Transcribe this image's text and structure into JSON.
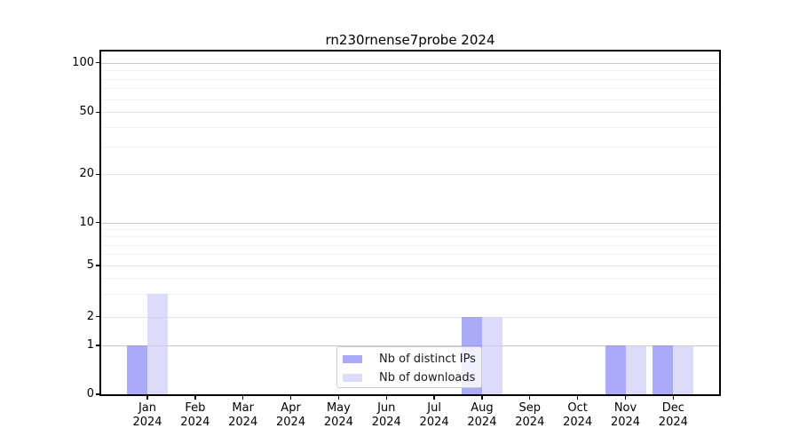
{
  "chart_data": {
    "type": "bar",
    "title": "rn230rnense7probe 2024",
    "x_categories": [
      "Jan",
      "Feb",
      "Mar",
      "Apr",
      "May",
      "Jun",
      "Jul",
      "Aug",
      "Sep",
      "Oct",
      "Nov",
      "Dec"
    ],
    "x_sub_label": "2024",
    "series": [
      {
        "name": "Nb of distinct IPs",
        "color": "#8686f5",
        "alpha": 0.7,
        "values": [
          1,
          0,
          0,
          0,
          0,
          0,
          0,
          2,
          0,
          0,
          1,
          1
        ]
      },
      {
        "name": "Nb of downloads",
        "color": "#cdcdf8",
        "alpha": 0.7,
        "values": [
          3,
          0,
          0,
          0,
          0,
          0,
          0,
          2,
          0,
          0,
          1,
          1
        ]
      }
    ],
    "y_axis": {
      "scale": "log-like (symlog with 0 baseline)",
      "labeled_ticks": [
        0,
        1,
        2,
        5,
        10,
        20,
        50,
        100
      ],
      "decade_gridlines": [
        1,
        10,
        100
      ],
      "major_gridlines": [
        2,
        5,
        20,
        50
      ],
      "minor_gridlines": [
        3,
        4,
        6,
        7,
        8,
        9,
        30,
        40,
        60,
        70,
        80,
        90
      ],
      "ylim": [
        0,
        118
      ],
      "grid": "on"
    },
    "legend": {
      "position": "lower center",
      "items": [
        {
          "label": "Nb of distinct IPs",
          "color": "#8686f5",
          "alpha": 0.7
        },
        {
          "label": "Nb of downloads",
          "color": "#cdcdf8",
          "alpha": 0.7
        }
      ]
    }
  }
}
